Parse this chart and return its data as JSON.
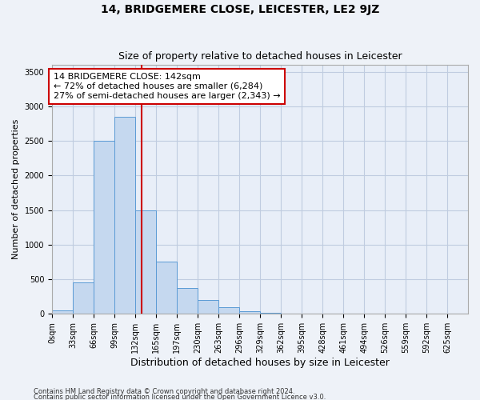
{
  "title": "14, BRIDGEMERE CLOSE, LEICESTER, LE2 9JZ",
  "subtitle": "Size of property relative to detached houses in Leicester",
  "xlabel": "Distribution of detached houses by size in Leicester",
  "ylabel": "Number of detached properties",
  "bin_edges": [
    0,
    33,
    66,
    99,
    132,
    165,
    197,
    230,
    263,
    296,
    329,
    362,
    395,
    428,
    461,
    494,
    526,
    559,
    592,
    625,
    658
  ],
  "bar_heights": [
    50,
    450,
    2500,
    2850,
    1500,
    750,
    375,
    200,
    100,
    40,
    15,
    8,
    5,
    3,
    2,
    2,
    2,
    2,
    2,
    2
  ],
  "bar_color": "#c5d8ef",
  "bar_edge_color": "#5b9bd5",
  "property_size": 142,
  "vline_color": "#cc0000",
  "annotation_line1": "14 BRIDGEMERE CLOSE: 142sqm",
  "annotation_line2": "← 72% of detached houses are smaller (6,284)",
  "annotation_line3": "27% of semi-detached houses are larger (2,343) →",
  "annotation_box_color": "#cc0000",
  "ylim": [
    0,
    3600
  ],
  "yticks": [
    0,
    500,
    1000,
    1500,
    2000,
    2500,
    3000,
    3500
  ],
  "footer_line1": "Contains HM Land Registry data © Crown copyright and database right 2024.",
  "footer_line2": "Contains public sector information licensed under the Open Government Licence v3.0.",
  "background_color": "#eef2f8",
  "plot_bg_color": "#e8eef8",
  "grid_color": "#c0cce0",
  "title_fontsize": 10,
  "subtitle_fontsize": 9,
  "tick_fontsize": 7,
  "ylabel_fontsize": 8,
  "xlabel_fontsize": 9
}
